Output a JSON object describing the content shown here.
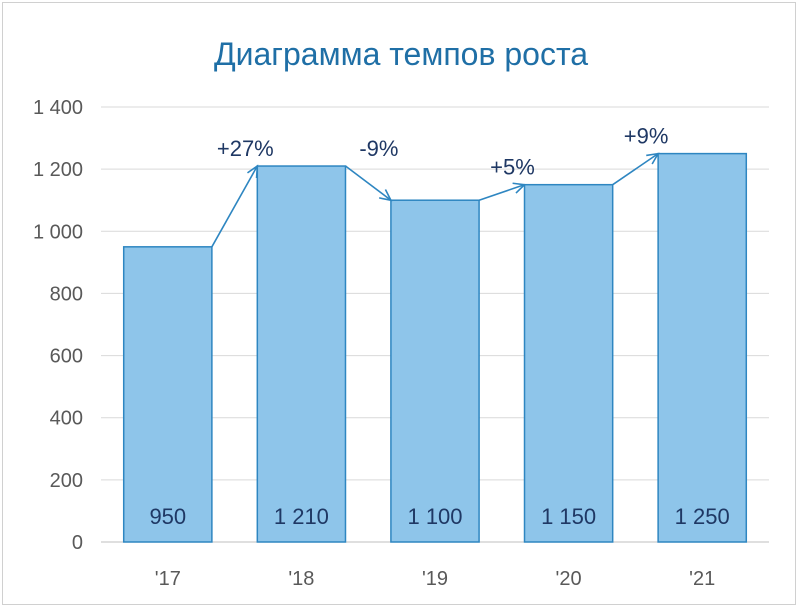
{
  "chart_data": {
    "type": "bar",
    "title": "Диаграмма темпов роста",
    "categories": [
      "'17",
      "'18",
      "'19",
      "'20",
      "'21"
    ],
    "values": [
      950,
      1210,
      1100,
      1150,
      1250
    ],
    "value_labels": [
      "950",
      "1 210",
      "1 100",
      "1 150",
      "1 250"
    ],
    "growth_labels": [
      "+27%",
      "-9%",
      "+5%",
      "+9%"
    ],
    "ylim": [
      0,
      1400
    ],
    "yticks": [
      0,
      200,
      400,
      600,
      800,
      1000,
      1200,
      1400
    ],
    "ytick_labels": [
      "0",
      "200",
      "400",
      "600",
      "800",
      "1 000",
      "1 200",
      "1 400"
    ],
    "grid": true,
    "xlabel": "",
    "ylabel": "",
    "colors": {
      "bar_fill": "#8ec5ea",
      "bar_stroke": "#2e86c1",
      "title": "#1f6fa6",
      "labels": "#1f3864"
    }
  }
}
